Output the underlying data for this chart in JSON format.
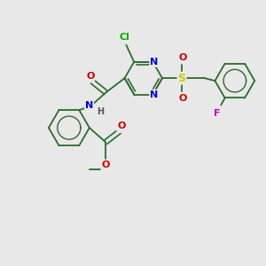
{
  "background_color": "#e8e8e8",
  "bond_color": "#2d6b2d",
  "atom_colors": {
    "N": "#0000cc",
    "O": "#cc0000",
    "Cl": "#00aa00",
    "S": "#cccc00",
    "F": "#cc00cc",
    "H": "#555555",
    "C": "#2d6b2d"
  },
  "figsize": [
    3.0,
    3.0
  ],
  "dpi": 100,
  "xlim": [
    0,
    10
  ],
  "ylim": [
    0,
    10
  ]
}
